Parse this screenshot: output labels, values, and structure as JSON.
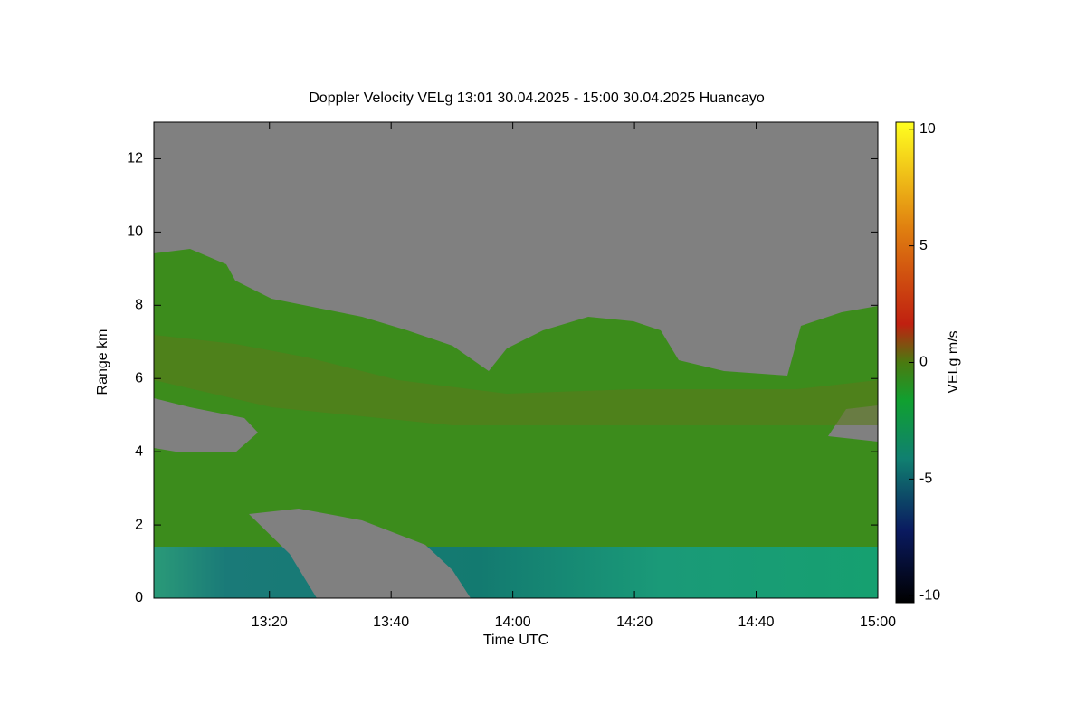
{
  "chart_data": {
    "type": "heatmap",
    "title": "Doppler Velocity VELg   13:01 30.04.2025 - 15:00 30.04.2025 Huancayo",
    "x_label": "Time UTC",
    "y_label": "Range km",
    "colorbar_label": "VELg m/s",
    "xlim": [
      781,
      900
    ],
    "xticks": [
      {
        "value": 800,
        "label": "13:20"
      },
      {
        "value": 820,
        "label": "13:40"
      },
      {
        "value": 840,
        "label": "14:00"
      },
      {
        "value": 860,
        "label": "14:20"
      },
      {
        "value": 880,
        "label": "14:40"
      },
      {
        "value": 900,
        "label": "15:00"
      }
    ],
    "ylim": [
      0,
      13
    ],
    "yticks": [
      0,
      2,
      4,
      6,
      8,
      10,
      12
    ],
    "clim": [
      -10.3,
      10.3
    ],
    "cticks": [
      -10,
      -5,
      0,
      5,
      10
    ]
  }
}
